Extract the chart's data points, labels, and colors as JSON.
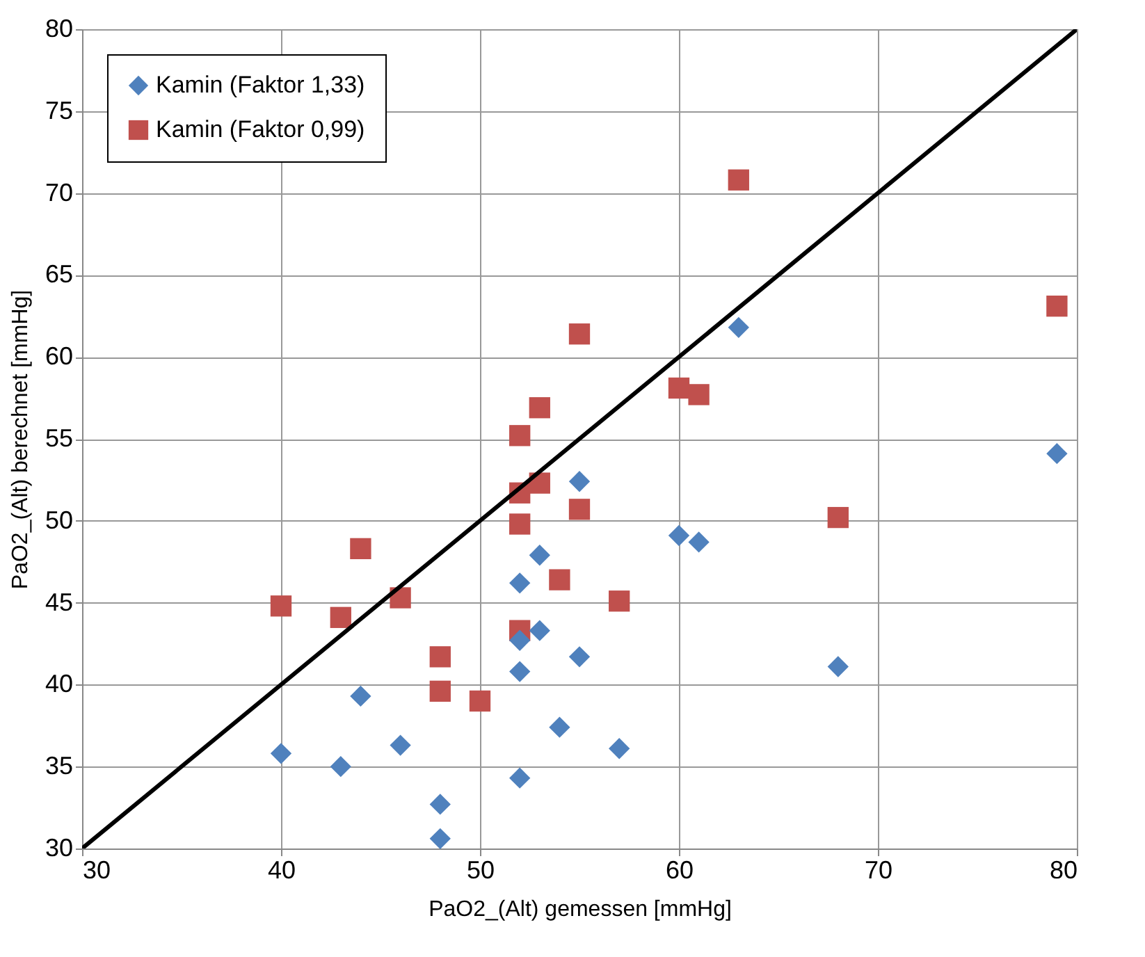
{
  "chart_data": {
    "type": "scatter",
    "xlabel": "PaO2_(Alt) gemessen [mmHg]",
    "ylabel": "PaO2_(Alt) berechnet [mmHg]",
    "xlim": [
      30,
      80
    ],
    "xticks": [
      30,
      40,
      50,
      60,
      70,
      80
    ],
    "ylim": [
      30,
      80
    ],
    "yticks": [
      30,
      35,
      40,
      45,
      50,
      55,
      60,
      65,
      70,
      75,
      80
    ],
    "grid": true,
    "legend": "top left",
    "series": [
      {
        "name": "Kamin (Faktor 1,33)",
        "color": "#4f81bd",
        "marker": "diamond",
        "x": [
          40,
          43,
          44,
          46,
          48,
          48,
          52,
          52,
          52,
          52,
          53,
          53,
          54,
          55,
          55,
          57,
          60,
          61,
          63,
          68,
          79
        ],
        "values": [
          35.8,
          35.0,
          39.3,
          36.3,
          32.7,
          30.6,
          46.2,
          42.7,
          40.8,
          34.3,
          47.9,
          43.3,
          37.4,
          52.4,
          41.7,
          36.1,
          49.1,
          48.7,
          61.8,
          41.1,
          54.1
        ]
      },
      {
        "name": "Kamin (Faktor 0,99)",
        "color": "#c0504d",
        "marker": "square",
        "x": [
          40,
          43,
          44,
          46,
          48,
          48,
          50,
          52,
          52,
          52,
          52,
          53,
          53,
          54,
          55,
          55,
          57,
          60,
          61,
          63,
          68,
          79
        ],
        "values": [
          44.8,
          44.1,
          48.3,
          45.3,
          41.7,
          39.6,
          39.0,
          55.2,
          51.7,
          49.8,
          43.3,
          56.9,
          52.3,
          46.4,
          61.4,
          50.7,
          45.1,
          58.1,
          57.7,
          70.8,
          50.2,
          63.1
        ]
      },
      {
        "type": "line",
        "color": "#000000",
        "marker": "none",
        "x": [
          30,
          80
        ],
        "values": [
          30,
          80
        ]
      }
    ]
  }
}
